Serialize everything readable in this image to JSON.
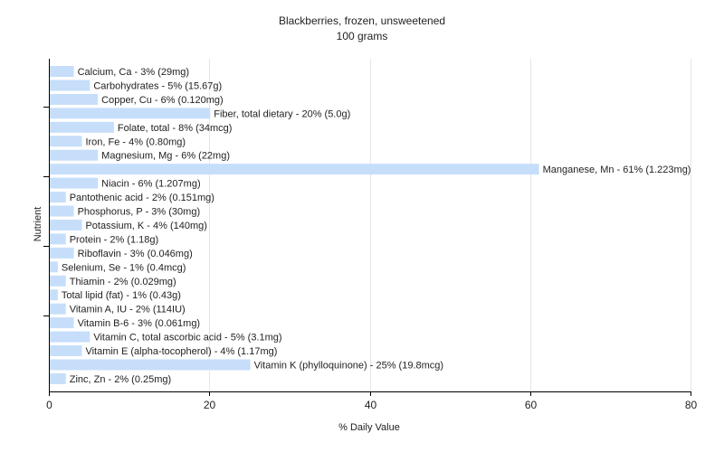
{
  "chart_data": {
    "type": "bar",
    "orientation": "horizontal",
    "title": "Blackberries, frozen, unsweetened",
    "subtitle": "100 grams",
    "xlabel": "% Daily Value",
    "ylabel": "Nutrient",
    "xlim": [
      0,
      80
    ],
    "xticks": [
      "0",
      "20",
      "40",
      "60",
      "80"
    ],
    "grid": true,
    "bar_color": "#c6defa",
    "categories": [
      "Calcium, Ca",
      "Carbohydrates",
      "Copper, Cu",
      "Fiber, total dietary",
      "Folate, total",
      "Iron, Fe",
      "Magnesium, Mg",
      "Manganese, Mn",
      "Niacin",
      "Pantothenic acid",
      "Phosphorus, P",
      "Potassium, K",
      "Protein",
      "Riboflavin",
      "Selenium, Se",
      "Thiamin",
      "Total lipid (fat)",
      "Vitamin A, IU",
      "Vitamin B-6",
      "Vitamin C, total ascorbic acid",
      "Vitamin E (alpha-tocopherol)",
      "Vitamin K (phylloquinone)",
      "Zinc, Zn"
    ],
    "values": [
      3,
      5,
      6,
      20,
      8,
      4,
      6,
      61,
      6,
      2,
      3,
      4,
      2,
      3,
      1,
      2,
      1,
      2,
      3,
      5,
      4,
      25,
      2
    ],
    "labels": [
      "Calcium, Ca - 3% (29mg)",
      "Carbohydrates - 5% (15.67g)",
      "Copper, Cu - 6% (0.120mg)",
      "Fiber, total dietary - 20% (5.0g)",
      "Folate, total - 8% (34mcg)",
      "Iron, Fe - 4% (0.80mg)",
      "Magnesium, Mg - 6% (22mg)",
      "Manganese, Mn - 61% (1.223mg)",
      "Niacin - 6% (1.207mg)",
      "Pantothenic acid - 2% (0.151mg)",
      "Phosphorus, P - 3% (30mg)",
      "Potassium, K - 4% (140mg)",
      "Protein - 2% (1.18g)",
      "Riboflavin - 3% (0.046mg)",
      "Selenium, Se - 1% (0.4mcg)",
      "Thiamin - 2% (0.029mg)",
      "Total lipid (fat) - 1% (0.43g)",
      "Vitamin A, IU - 2% (114IU)",
      "Vitamin B-6 - 3% (0.061mg)",
      "Vitamin C, total ascorbic acid - 5% (3.1mg)",
      "Vitamin E (alpha-tocopherol) - 4% (1.17mg)",
      "Vitamin K (phylloquinone) - 25% (19.8mcg)",
      "Zinc, Zn - 2% (0.25mg)"
    ]
  }
}
